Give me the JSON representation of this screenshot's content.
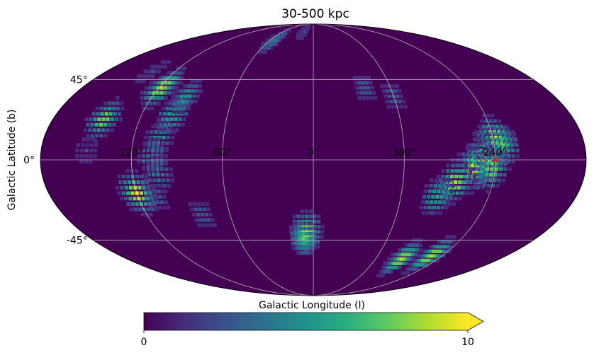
{
  "chart_data": {
    "type": "heatmap",
    "projection": "mollweide",
    "title": "30-500 kpc",
    "xlabel": "Galactic Longitude (l)",
    "ylabel": "Galactic Latitude (b)",
    "grid": true,
    "x_ticks": [
      {
        "l": 120,
        "label": "120°"
      },
      {
        "l": 60,
        "label": "60°"
      },
      {
        "l": 0,
        "label": "0°"
      },
      {
        "l": 300,
        "label": "300°"
      },
      {
        "l": 240,
        "label": "240°"
      }
    ],
    "y_ticks": [
      {
        "b": 45,
        "label": "45°"
      },
      {
        "b": 0,
        "label": "0°"
      },
      {
        "b": -45,
        "label": "-45°"
      }
    ],
    "colormap": "viridis",
    "colorbar": {
      "min": 0,
      "max": 10,
      "extend": "max",
      "tick_labels": [
        "0",
        "10"
      ],
      "placement": "bottom"
    },
    "background_value": 0,
    "regions": [
      {
        "l": 243,
        "b": 5,
        "value": 10
      },
      {
        "l": 248,
        "b": -1,
        "value": 10
      },
      {
        "l": 255,
        "b": -6,
        "value": 10
      },
      {
        "l": 265,
        "b": -12,
        "value": 9
      },
      {
        "l": 238,
        "b": 12,
        "value": 9
      },
      {
        "l": 234,
        "b": 8,
        "value": 7
      },
      {
        "l": 242,
        "b": -5,
        "value": 8
      },
      {
        "l": 275,
        "b": -20,
        "value": 6
      },
      {
        "l": 5,
        "b": -40,
        "value": 10
      },
      {
        "l": 8,
        "b": -44,
        "value": 7
      },
      {
        "l": 250,
        "b": -55,
        "value": 9
      },
      {
        "l": 275,
        "b": -57,
        "value": 9
      },
      {
        "l": 103,
        "b": 12,
        "value": 5
      },
      {
        "l": 98,
        "b": 25,
        "value": 6
      },
      {
        "l": 106,
        "b": 2,
        "value": 4
      },
      {
        "l": 103,
        "b": -8,
        "value": 4
      },
      {
        "l": 108,
        "b": -20,
        "value": 3
      },
      {
        "l": 95,
        "b": 35,
        "value": 5
      },
      {
        "l": 118,
        "b": 40,
        "value": 9
      },
      {
        "l": 145,
        "b": 22,
        "value": 8
      },
      {
        "l": 55,
        "b": 72,
        "value": 4
      },
      {
        "l": 20,
        "b": 80,
        "value": 2
      },
      {
        "l": 120,
        "b": -18,
        "value": 10
      },
      {
        "l": 80,
        "b": -30,
        "value": 3
      },
      {
        "l": 300,
        "b": 35,
        "value": 3
      },
      {
        "l": 320,
        "b": 40,
        "value": 3
      },
      {
        "l": 140,
        "b": 50,
        "value": 2
      },
      {
        "l": 150,
        "b": 5,
        "value": 2
      }
    ],
    "marker": {
      "l": 240,
      "b": 0,
      "symbol": "star",
      "color": "#d62728"
    }
  }
}
